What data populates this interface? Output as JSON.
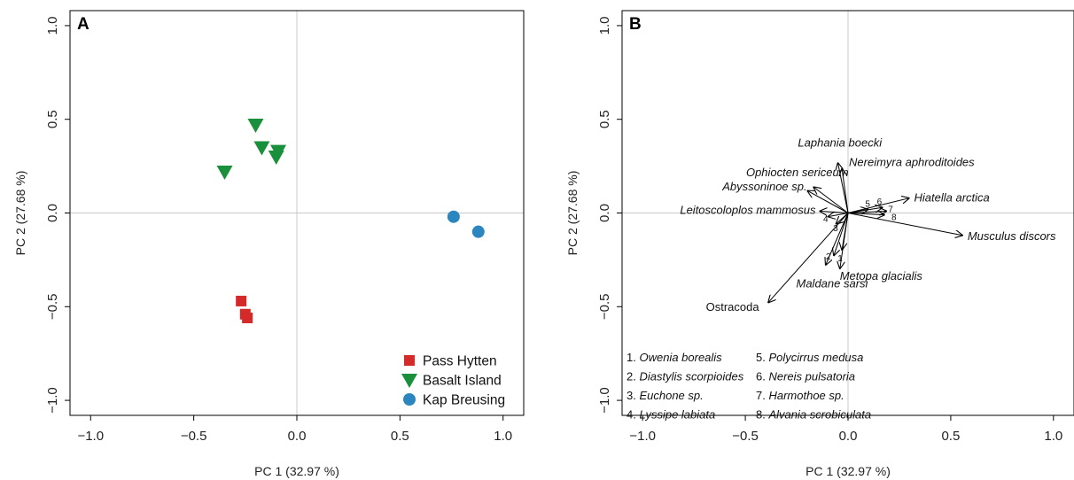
{
  "chart_data": [
    {
      "type": "scatter",
      "panel": "A",
      "xlabel": "PC 1 (32.97 %)",
      "ylabel": "PC 2 (27.68 %)",
      "xlim": [
        -1.1,
        1.1
      ],
      "ylim": [
        -1.08,
        1.08
      ],
      "xticks": [
        -1.0,
        -0.5,
        0.0,
        0.5,
        1.0
      ],
      "yticks": [
        -1.0,
        -0.5,
        0.0,
        0.5,
        1.0
      ],
      "xtick_labels": [
        "−1.0",
        "−0.5",
        "0.0",
        "0.5",
        "1.0"
      ],
      "ytick_labels": [
        "−1.0",
        "−0.5",
        "0.0",
        "0.5",
        "1.0"
      ],
      "reference_lines": {
        "x": 0,
        "y": 0
      },
      "legend_position": "bottom-right",
      "series": [
        {
          "name": "Pass Hytten",
          "marker": "square",
          "color": "#d42a2a",
          "points": [
            [
              -0.27,
              -0.47
            ],
            [
              -0.25,
              -0.54
            ],
            [
              -0.24,
              -0.56
            ]
          ]
        },
        {
          "name": "Basalt Island",
          "marker": "triangle-down",
          "color": "#1a8f3c",
          "points": [
            [
              -0.2,
              0.47
            ],
            [
              -0.35,
              0.22
            ],
            [
              -0.17,
              0.35
            ],
            [
              -0.09,
              0.33
            ],
            [
              -0.1,
              0.3
            ]
          ]
        },
        {
          "name": "Kap Breusing",
          "marker": "circle",
          "color": "#2b86c0",
          "points": [
            [
              0.76,
              -0.02
            ],
            [
              0.88,
              -0.1
            ]
          ]
        }
      ]
    },
    {
      "type": "biplot",
      "panel": "B",
      "xlabel": "PC 1 (32.97 %)",
      "ylabel": "PC 2 (27.68 %)",
      "xlim": [
        -1.1,
        1.1
      ],
      "ylim": [
        -1.08,
        1.08
      ],
      "xticks": [
        -1.0,
        -0.5,
        0.0,
        0.5,
        1.0
      ],
      "yticks": [
        -1.0,
        -0.5,
        0.0,
        0.5,
        1.0
      ],
      "xtick_labels": [
        "−1.0",
        "−0.5",
        "0.0",
        "0.5",
        "1.0"
      ],
      "ytick_labels": [
        "−1.0",
        "−0.5",
        "0.0",
        "0.5",
        "1.0"
      ],
      "reference_lines": {
        "x": 0,
        "y": 0
      },
      "vectors": [
        {
          "label": "Laphania boecki",
          "x": -0.05,
          "y": 0.27,
          "italic": true
        },
        {
          "label": "Nereimyra aphroditoides",
          "x": -0.03,
          "y": 0.24,
          "italic": true
        },
        {
          "label": "Ophiocten sericeum",
          "x": -0.17,
          "y": 0.14,
          "italic": true
        },
        {
          "label": "Abyssoninoe sp.",
          "x": -0.2,
          "y": 0.12,
          "italic": true
        },
        {
          "label": "Leitoscoloplos mammosus",
          "x": -0.14,
          "y": 0.01,
          "italic": true
        },
        {
          "label": "Hiatella arctica",
          "x": 0.3,
          "y": 0.08,
          "italic": true
        },
        {
          "label": "Musculus discors",
          "x": 0.56,
          "y": -0.12,
          "italic": true
        },
        {
          "label": "Metopa glacialis",
          "x": -0.04,
          "y": -0.3,
          "italic": true
        },
        {
          "label": "Maldane sarsi",
          "x": -0.11,
          "y": -0.28,
          "italic": true
        },
        {
          "label": "Ostracoda",
          "x": -0.39,
          "y": -0.48,
          "italic": false
        },
        {
          "label": "1",
          "x": -0.03,
          "y": -0.2,
          "italic": false
        },
        {
          "label": "2",
          "x": -0.07,
          "y": -0.23,
          "italic": false
        },
        {
          "label": "3",
          "x": -0.06,
          "y": -0.06,
          "italic": false
        },
        {
          "label": "4",
          "x": -0.1,
          "y": -0.02,
          "italic": false
        },
        {
          "label": "5",
          "x": 0.1,
          "y": 0.02,
          "italic": false
        },
        {
          "label": "6",
          "x": 0.17,
          "y": 0.03,
          "italic": false
        },
        {
          "label": "7",
          "x": 0.19,
          "y": 0.01,
          "italic": false
        },
        {
          "label": "8",
          "x": 0.18,
          "y": -0.01,
          "italic": false
        }
      ],
      "key": [
        {
          "n": "1.",
          "name": "Owenia borealis"
        },
        {
          "n": "2.",
          "name": "Diastylis scorpioides"
        },
        {
          "n": "3.",
          "name": "Euchone sp."
        },
        {
          "n": "4.",
          "name": "Lyssipe labiata"
        },
        {
          "n": "5.",
          "name": "Polycirrus medusa"
        },
        {
          "n": "6.",
          "name": "Nereis pulsatoria"
        },
        {
          "n": "7.",
          "name": "Harmothoe sp."
        },
        {
          "n": "8.",
          "name": "Alvania scrobiculata"
        }
      ]
    }
  ]
}
